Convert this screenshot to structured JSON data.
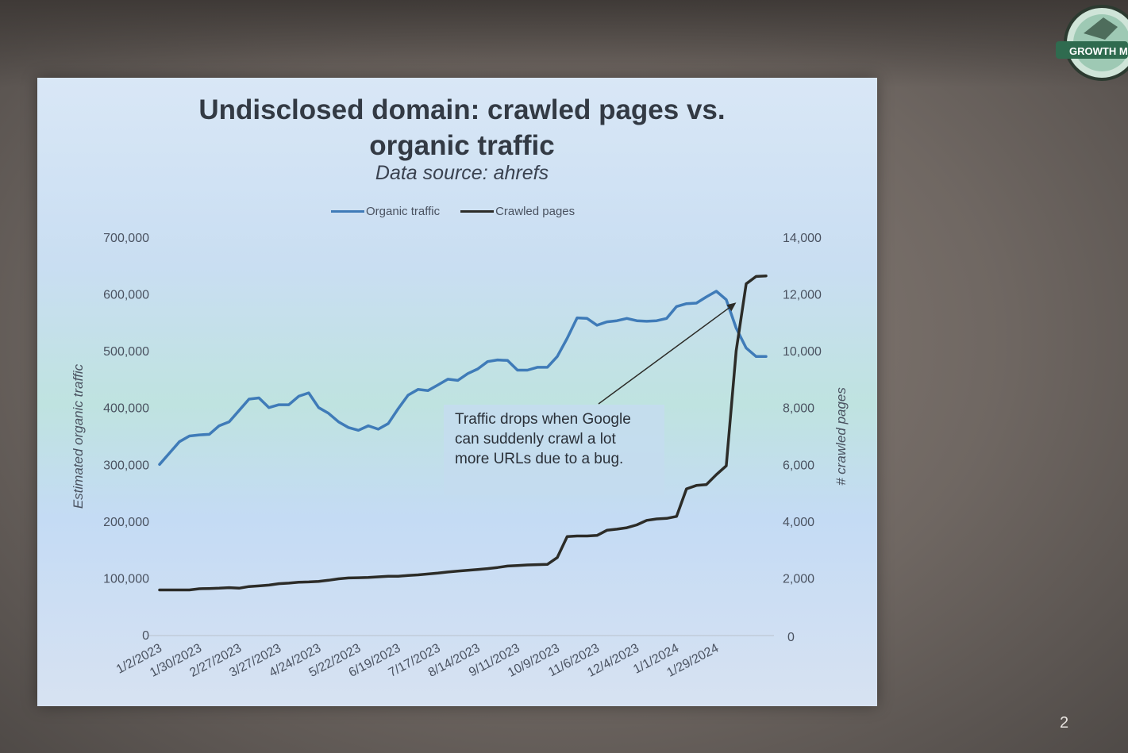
{
  "slide": {
    "title_line1": "Undisclosed domain: crawled pages vs.",
    "title_line2": "organic traffic",
    "subtitle": "Data source: ahrefs",
    "page_number": "2",
    "annotation": "Traffic drops when Google can suddenly crawl a lot more URLs due to a bug.",
    "logo_text": "GROWTH M",
    "colors": {
      "organic": "#3f7bb8",
      "crawled": "#2c2c28"
    }
  },
  "chart_data": {
    "type": "line",
    "title": "Undisclosed domain: crawled pages vs. organic traffic",
    "subtitle": "Data source: ahrefs",
    "legend": {
      "position": "top",
      "entries": [
        "Organic traffic",
        "Crawled pages"
      ]
    },
    "grid": false,
    "x_tick_labels": [
      "1/2/2023",
      "1/30/2023",
      "2/27/2023",
      "3/27/2023",
      "4/24/2023",
      "5/22/2023",
      "6/19/2023",
      "7/17/2023",
      "8/14/2023",
      "9/11/2023",
      "10/9/2023",
      "11/6/2023",
      "12/4/2023",
      "1/1/2024",
      "1/29/2024"
    ],
    "y_left": {
      "label": "Estimated organic traffic",
      "range": [
        0,
        700000
      ],
      "ticks": [
        "0",
        "100,000",
        "200,000",
        "300,000",
        "400,000",
        "500,000",
        "600,000",
        "700,000"
      ]
    },
    "y_right": {
      "label": "# crawled pages",
      "range": [
        0,
        14000
      ],
      "ticks": [
        "0",
        "2,000",
        "4,000",
        "6,000",
        "8,000",
        "10,000",
        "12,000",
        "14,000"
      ]
    },
    "x": [
      "1/2/2023",
      "1/9/2023",
      "1/16/2023",
      "1/23/2023",
      "1/30/2023",
      "2/6/2023",
      "2/13/2023",
      "2/20/2023",
      "2/27/2023",
      "3/6/2023",
      "3/13/2023",
      "3/20/2023",
      "3/27/2023",
      "4/3/2023",
      "4/10/2023",
      "4/17/2023",
      "4/24/2023",
      "5/1/2023",
      "5/8/2023",
      "5/15/2023",
      "5/22/2023",
      "5/29/2023",
      "6/5/2023",
      "6/12/2023",
      "6/19/2023",
      "6/26/2023",
      "7/3/2023",
      "7/10/2023",
      "7/17/2023",
      "7/24/2023",
      "7/31/2023",
      "8/7/2023",
      "8/14/2023",
      "8/21/2023",
      "8/28/2023",
      "9/4/2023",
      "9/11/2023",
      "9/18/2023",
      "9/25/2023",
      "10/2/2023",
      "10/9/2023",
      "10/16/2023",
      "10/23/2023",
      "10/30/2023",
      "11/6/2023",
      "11/13/2023",
      "11/20/2023",
      "11/27/2023",
      "12/4/2023",
      "12/11/2023",
      "12/18/2023",
      "12/25/2023",
      "1/1/2024",
      "1/8/2024",
      "1/15/2024",
      "1/22/2024",
      "1/29/2024",
      "2/5/2024",
      "2/12/2024",
      "2/19/2024",
      "2/26/2024",
      "3/4/2024"
    ],
    "series": [
      {
        "name": "Organic traffic",
        "axis": "left",
        "values": [
          300000,
          320000,
          340000,
          350000,
          352000,
          353000,
          368000,
          375000,
          395000,
          415000,
          417000,
          400000,
          405000,
          405000,
          420000,
          426000,
          400000,
          390000,
          375000,
          365000,
          360000,
          368000,
          362000,
          372000,
          398000,
          422000,
          432000,
          430000,
          440000,
          450000,
          448000,
          460000,
          468000,
          481000,
          484000,
          483000,
          466000,
          466000,
          471000,
          471000,
          490000,
          522000,
          558000,
          557000,
          545000,
          551000,
          553000,
          557000,
          553000,
          552000,
          553000,
          557000,
          578000,
          583000,
          584000,
          595000,
          605000,
          590000,
          540000,
          505000,
          490000,
          490000
        ]
      },
      {
        "name": "Crawled pages",
        "axis": "right",
        "values": [
          1580,
          1580,
          1580,
          1580,
          1620,
          1630,
          1640,
          1660,
          1640,
          1700,
          1720,
          1750,
          1800,
          1820,
          1850,
          1860,
          1880,
          1920,
          1970,
          2000,
          2010,
          2020,
          2040,
          2060,
          2060,
          2090,
          2110,
          2140,
          2170,
          2210,
          2240,
          2270,
          2300,
          2330,
          2370,
          2420,
          2440,
          2460,
          2470,
          2480,
          2720,
          3460,
          3480,
          3480,
          3500,
          3680,
          3720,
          3770,
          3870,
          4030,
          4080,
          4100,
          4170,
          5140,
          5260,
          5290,
          5640,
          5950,
          10000,
          12360,
          12620,
          12640
        ]
      }
    ],
    "annotations": [
      {
        "text": "Traffic drops when Google can suddenly crawl a lot more URLs due to a bug.",
        "arrow_to": {
          "x": "2/12/2024",
          "y_right": 11700
        }
      }
    ]
  }
}
